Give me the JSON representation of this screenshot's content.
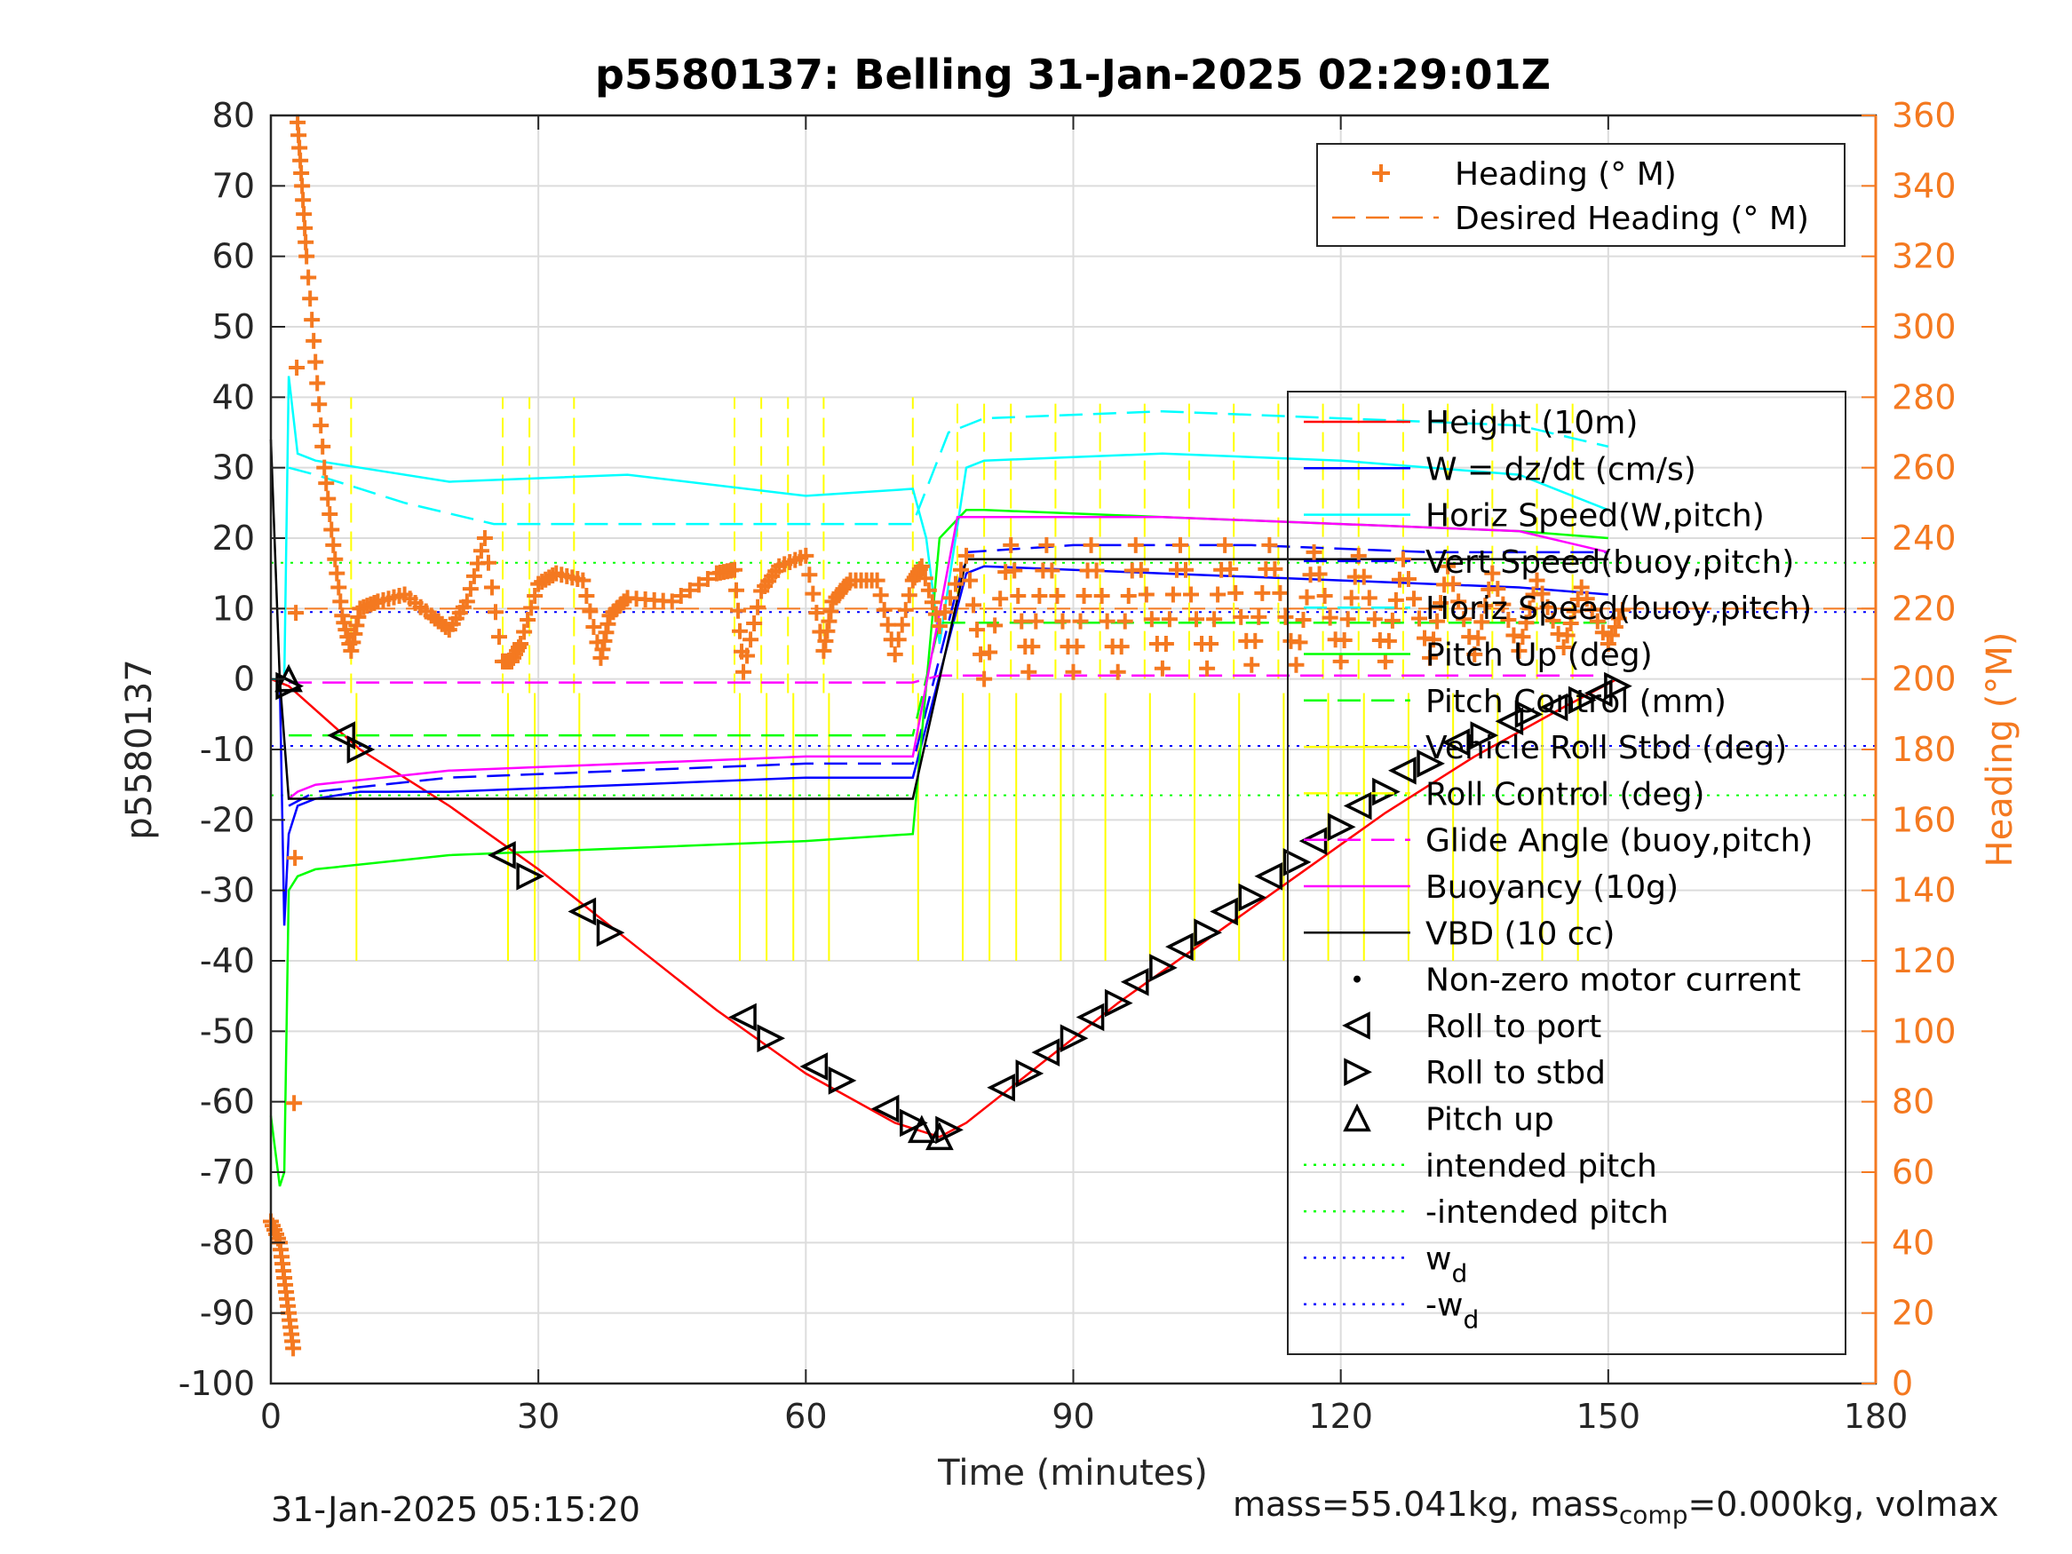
{
  "figure": {
    "title": "p5580137: Belling 31-Jan-2025 02:29:01Z",
    "footer_left": "31-Jan-2025 05:15:20",
    "footer_right_prefix": "mass=55.041kg, mass",
    "footer_right_sub": "comp",
    "footer_right_suffix": "=0.000kg, volmax"
  },
  "chart_data": {
    "type": "line",
    "title": "p5580137: Belling 31-Jan-2025 02:29:01Z",
    "xlabel": "Time (minutes)",
    "ylabel": "p5580137",
    "y2label": "Heading (°M)",
    "xlim": [
      0,
      180
    ],
    "ylim": [
      -100,
      80
    ],
    "y2lim": [
      0,
      360
    ],
    "xticks": [
      "0",
      "30",
      "60",
      "90",
      "120",
      "150",
      "180"
    ],
    "yticks": [
      "80",
      "70",
      "60",
      "50",
      "40",
      "30",
      "20",
      "10",
      "0",
      "-10",
      "-20",
      "-30",
      "-40",
      "-50",
      "-60",
      "-70",
      "-80",
      "-90",
      "-100"
    ],
    "y2ticks": [
      "360",
      "340",
      "320",
      "300",
      "280",
      "260",
      "240",
      "220",
      "200",
      "180",
      "160",
      "140",
      "120",
      "100",
      "80",
      "60",
      "40",
      "20",
      "0"
    ],
    "grid": true,
    "legend_top": {
      "placement": "top-right",
      "entries": [
        {
          "label": "Heading (° M)",
          "color": "#f47920",
          "style": "plus"
        },
        {
          "label": "Desired Heading (° M)",
          "color": "#f47920",
          "style": "dash"
        }
      ]
    },
    "legend_main": {
      "placement": "right",
      "entries": [
        {
          "label": "Height (10m)",
          "color": "#ff0000",
          "style": "solid"
        },
        {
          "label": "W = dz/dt (cm/s)",
          "color": "#0000ff",
          "style": "solid"
        },
        {
          "label": "Horiz Speed(W,pitch)",
          "color": "#00ffff",
          "style": "solid"
        },
        {
          "label": "Vert Speed(buoy,pitch)",
          "color": "#0000ff",
          "style": "dash"
        },
        {
          "label": "Horiz Speed(buoy,pitch)",
          "color": "#00ffff",
          "style": "dash"
        },
        {
          "label": "Pitch Up (deg)",
          "color": "#00ff00",
          "style": "solid"
        },
        {
          "label": "Pitch Control (mm)",
          "color": "#00ff00",
          "style": "dash"
        },
        {
          "label": "Vehicle Roll Stbd (deg)",
          "color": "#ffff00",
          "style": "solid"
        },
        {
          "label": "Roll Control (deg)",
          "color": "#ffff00",
          "style": "dash"
        },
        {
          "label": "Glide Angle (buoy,pitch)",
          "color": "#ff00ff",
          "style": "dash"
        },
        {
          "label": "Buoyancy (10g)",
          "color": "#ff00ff",
          "style": "solid"
        },
        {
          "label": "VBD (10 cc)",
          "color": "#000000",
          "style": "solid"
        },
        {
          "label": "Non-zero motor current",
          "color": "#000000",
          "style": "dot"
        },
        {
          "label": "Roll to port",
          "color": "#000000",
          "style": "tri-left"
        },
        {
          "label": "Roll to stbd",
          "color": "#000000",
          "style": "tri-right"
        },
        {
          "label": "Pitch up",
          "color": "#000000",
          "style": "tri-up"
        },
        {
          "label": "intended pitch",
          "color": "#00ff00",
          "style": "dot-line"
        },
        {
          "label": "-intended pitch",
          "color": "#00ff00",
          "style": "dot-line"
        },
        {
          "label": "w",
          "sub": "d",
          "color": "#0000ff",
          "style": "dot-line"
        },
        {
          "label": "-w",
          "sub": "d",
          "color": "#0000ff",
          "style": "dot-line"
        }
      ]
    },
    "series": [
      {
        "name": "Height (10m)",
        "color": "#ff0000",
        "axis": "left",
        "x": [
          0,
          2,
          10,
          20,
          30,
          40,
          50,
          60,
          70,
          75,
          78,
          85,
          95,
          105,
          115,
          125,
          135,
          145,
          151
        ],
        "y": [
          0,
          -1,
          -10,
          -18,
          -27,
          -37,
          -47,
          -56,
          -63,
          -65,
          -63,
          -56,
          -46,
          -37,
          -28,
          -19,
          -11,
          -4,
          0
        ]
      },
      {
        "name": "W = dz/dt (cm/s)",
        "color": "#0000ff",
        "axis": "left",
        "x": [
          0,
          1,
          1.5,
          2,
          3,
          5,
          10,
          20,
          40,
          60,
          72,
          78,
          80,
          100,
          120,
          140,
          150
        ],
        "y": [
          0,
          0,
          -35,
          -22,
          -18,
          -17,
          -16,
          -16,
          -15,
          -14,
          -14,
          15,
          16,
          15,
          14,
          13,
          12
        ]
      },
      {
        "name": "Horiz Speed(W,pitch)",
        "color": "#00ffff",
        "axis": "left",
        "x": [
          0,
          1.5,
          2,
          3,
          5,
          10,
          20,
          40,
          60,
          72,
          73.5,
          75,
          78,
          80,
          100,
          120,
          140,
          150
        ],
        "y": [
          0,
          0,
          43,
          32,
          31,
          30,
          28,
          29,
          26,
          27,
          20,
          5,
          30,
          31,
          32,
          31,
          29,
          24
        ]
      },
      {
        "name": "Vert Speed(buoy,pitch)",
        "color": "#0000ff",
        "axis": "left",
        "x": [
          2,
          5,
          20,
          40,
          60,
          72,
          78,
          90,
          110,
          130,
          150
        ],
        "y": [
          -18,
          -16,
          -14,
          -13,
          -12,
          -12,
          18,
          19,
          19,
          18,
          18
        ]
      },
      {
        "name": "Horiz Speed(buoy,pitch)",
        "color": "#00ffff",
        "axis": "left",
        "x": [
          2,
          5,
          15,
          25,
          40,
          60,
          72,
          76,
          80,
          100,
          120,
          140,
          150
        ],
        "y": [
          30,
          29,
          25,
          22,
          22,
          22,
          22,
          35,
          37,
          38,
          37,
          36,
          33
        ]
      },
      {
        "name": "Pitch Up (deg)",
        "color": "#00ff00",
        "axis": "left",
        "x": [
          0,
          1,
          1.5,
          2,
          3,
          5,
          20,
          40,
          60,
          72,
          75,
          78,
          80,
          100,
          120,
          140,
          150
        ],
        "y": [
          -62,
          -72,
          -70,
          -30,
          -28,
          -27,
          -25,
          -24,
          -23,
          -22,
          20,
          24,
          24,
          23,
          22,
          21,
          20
        ]
      },
      {
        "name": "Pitch Control (mm)",
        "color": "#00ff00",
        "axis": "left",
        "x": [
          2,
          72,
          75,
          150
        ],
        "y": [
          -8,
          -8,
          8,
          8
        ]
      },
      {
        "name": "Glide Angle (buoy,pitch)",
        "color": "#ff00ff",
        "axis": "left",
        "x": [
          2,
          72,
          75,
          150
        ],
        "y": [
          -0.5,
          -0.5,
          0.5,
          0.5
        ]
      },
      {
        "name": "Buoyancy (10g)",
        "color": "#ff00ff",
        "axis": "left",
        "x": [
          2,
          3,
          5,
          20,
          40,
          60,
          72,
          77,
          80,
          100,
          120,
          140,
          150
        ],
        "y": [
          -17,
          -16,
          -15,
          -13,
          -12,
          -11,
          -11,
          23,
          23,
          23,
          22,
          21,
          18
        ]
      },
      {
        "name": "VBD (10 cc)",
        "color": "#000000",
        "axis": "left",
        "x": [
          0,
          1,
          2,
          72,
          78,
          150
        ],
        "y": [
          34,
          0,
          -17,
          -17,
          17,
          17
        ]
      },
      {
        "name": "Heading (° M)",
        "color": "#f47920",
        "axis": "right",
        "x": [
          0,
          1,
          1.5,
          2,
          2.5,
          3,
          3.5,
          4,
          5,
          6,
          7,
          8,
          9,
          10,
          12,
          15,
          18,
          20,
          22,
          24,
          26,
          27,
          28,
          30,
          32,
          35,
          37,
          38,
          40,
          45,
          50,
          52,
          53,
          55,
          57,
          60,
          62,
          63,
          65,
          68,
          70,
          72,
          73,
          75,
          78,
          80,
          83,
          85,
          87,
          90,
          92,
          95,
          97,
          100,
          102,
          105,
          107,
          110,
          112,
          115,
          117,
          120,
          122,
          125,
          127,
          130,
          132,
          135,
          137,
          140,
          142,
          145,
          147,
          150,
          152
        ],
        "y": [
          46,
          40,
          30,
          20,
          10,
          358,
          340,
          320,
          290,
          260,
          238,
          218,
          208,
          220,
          222,
          224,
          218,
          214,
          222,
          240,
          205,
          205,
          210,
          227,
          230,
          228,
          206,
          218,
          223,
          222,
          230,
          231,
          202,
          225,
          232,
          235,
          208,
          222,
          228,
          228,
          207,
          228,
          232,
          215,
          235,
          200,
          238,
          202,
          238,
          202,
          238,
          202,
          238,
          203,
          238,
          203,
          238,
          204,
          238,
          204,
          236,
          205,
          235,
          205,
          234,
          206,
          232,
          207,
          230,
          208,
          228,
          209,
          226,
          210,
          222
        ]
      }
    ],
    "reference_lines": [
      {
        "label": "intended pitch",
        "color": "#00ff00",
        "y": 16.5
      },
      {
        "label": "-intended pitch",
        "color": "#00ff00",
        "y": -16.5
      },
      {
        "label": "w_d",
        "color": "#0000ff",
        "y": 9.5
      },
      {
        "label": "-w_d",
        "color": "#0000ff",
        "y": -9.5
      },
      {
        "label": "Desired Heading",
        "color": "#f47920",
        "y2": 220
      }
    ],
    "roll_control_spikes_x": [
      9,
      26,
      29,
      34,
      52,
      55,
      58,
      62,
      72,
      77,
      80,
      83,
      88,
      93,
      98,
      103,
      108,
      113,
      118,
      122,
      127,
      132,
      137,
      142,
      146
    ],
    "markers": {
      "roll_to_port": [
        [
          8,
          -8
        ],
        [
          26,
          -25
        ],
        [
          35,
          -33
        ],
        [
          53,
          -48
        ],
        [
          61,
          -55
        ],
        [
          69,
          -61
        ],
        [
          82,
          -58
        ],
        [
          87,
          -53
        ],
        [
          92,
          -48
        ],
        [
          97,
          -43
        ],
        [
          102,
          -38
        ],
        [
          107,
          -33
        ],
        [
          112,
          -28
        ],
        [
          117,
          -23
        ],
        [
          122,
          -18
        ],
        [
          127,
          -13
        ],
        [
          133,
          -9
        ],
        [
          139,
          -6
        ],
        [
          144,
          -4
        ],
        [
          149,
          -2
        ]
      ],
      "roll_to_stbd": [
        [
          2,
          -1
        ],
        [
          10,
          -10
        ],
        [
          29,
          -28
        ],
        [
          38,
          -36
        ],
        [
          56,
          -51
        ],
        [
          64,
          -57
        ],
        [
          72,
          -63
        ],
        [
          76,
          -64
        ],
        [
          85,
          -56
        ],
        [
          90,
          -51
        ],
        [
          95,
          -46
        ],
        [
          100,
          -41
        ],
        [
          105,
          -36
        ],
        [
          110,
          -31
        ],
        [
          115,
          -26
        ],
        [
          120,
          -21
        ],
        [
          125,
          -16
        ],
        [
          130,
          -12
        ],
        [
          136,
          -8
        ],
        [
          141,
          -5
        ],
        [
          147,
          -3
        ],
        [
          151,
          -1
        ]
      ],
      "pitch_up": [
        [
          2,
          0
        ],
        [
          73,
          -64
        ],
        [
          75,
          -65
        ]
      ]
    }
  }
}
